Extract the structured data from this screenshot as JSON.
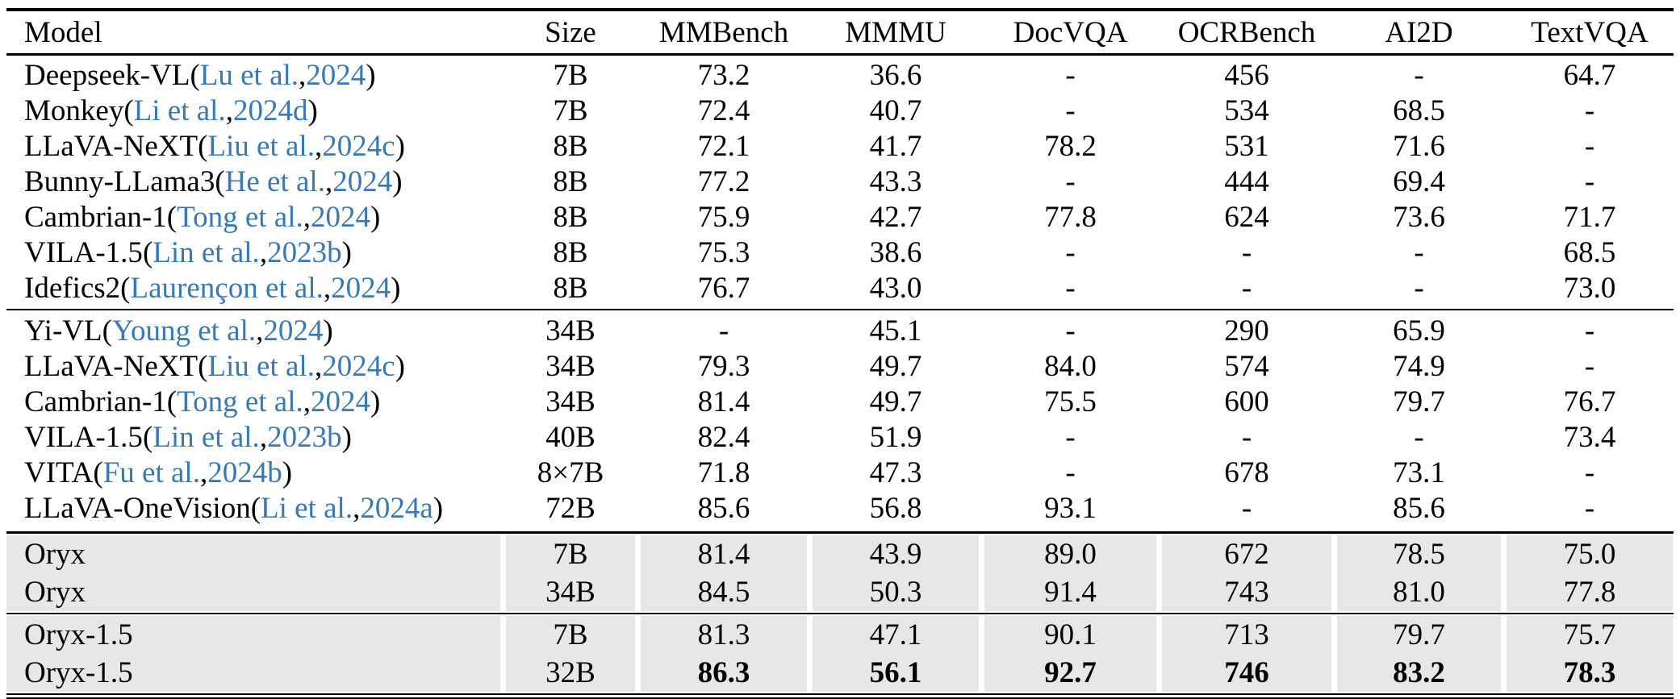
{
  "table": {
    "citation_color": "#3878b4",
    "highlight_color": "#e7e7e7",
    "citation_format": {
      "open": " (",
      "sep": ", ",
      "close": ")"
    },
    "columns": [
      "Model",
      "Size",
      "MMBench",
      "MMMU",
      "DocVQA",
      "OCRBench",
      "AI2D",
      "TextVQA"
    ],
    "groups": [
      {
        "shaded": false,
        "rows": [
          {
            "model": "Deepseek-VL",
            "cite_author": "Lu et al.",
            "cite_year": "2024",
            "size": "7B",
            "values": [
              "73.2",
              "36.6",
              "-",
              "456",
              "-",
              "64.7"
            ],
            "bold_values": false
          },
          {
            "model": "Monkey",
            "cite_author": "Li et al.",
            "cite_year": "2024d",
            "size": "7B",
            "values": [
              "72.4",
              "40.7",
              "-",
              "534",
              "68.5",
              "-"
            ],
            "bold_values": false
          },
          {
            "model": "LLaVA-NeXT",
            "cite_author": "Liu et al.",
            "cite_year": "2024c",
            "size": "8B",
            "values": [
              "72.1",
              "41.7",
              "78.2",
              "531",
              "71.6",
              "-"
            ],
            "bold_values": false
          },
          {
            "model": "Bunny-LLama3",
            "cite_author": "He et al.",
            "cite_year": "2024",
            "size": "8B",
            "values": [
              "77.2",
              "43.3",
              "-",
              "444",
              "69.4",
              "-"
            ],
            "bold_values": false
          },
          {
            "model": "Cambrian-1",
            "cite_author": "Tong et al.",
            "cite_year": "2024",
            "size": "8B",
            "values": [
              "75.9",
              "42.7",
              "77.8",
              "624",
              "73.6",
              "71.7"
            ],
            "bold_values": false
          },
          {
            "model": "VILA-1.5",
            "cite_author": "Lin et al.",
            "cite_year": "2023b",
            "size": "8B",
            "values": [
              "75.3",
              "38.6",
              "-",
              "-",
              "-",
              "68.5"
            ],
            "bold_values": false
          },
          {
            "model": "Idefics2",
            "cite_author": "Laurençon et al.",
            "cite_year": "2024",
            "size": "8B",
            "values": [
              "76.7",
              "43.0",
              "-",
              "-",
              "-",
              "73.0"
            ],
            "bold_values": false
          }
        ]
      },
      {
        "shaded": false,
        "rows": [
          {
            "model": "Yi-VL",
            "cite_author": "Young et al.",
            "cite_year": "2024",
            "size": "34B",
            "values": [
              "-",
              "45.1",
              "-",
              "290",
              "65.9",
              "-"
            ],
            "bold_values": false
          },
          {
            "model": "LLaVA-NeXT",
            "cite_author": "Liu et al.",
            "cite_year": "2024c",
            "size": "34B",
            "values": [
              "79.3",
              "49.7",
              "84.0",
              "574",
              "74.9",
              "-"
            ],
            "bold_values": false
          },
          {
            "model": "Cambrian-1",
            "cite_author": "Tong et al.",
            "cite_year": "2024",
            "size": "34B",
            "values": [
              "81.4",
              "49.7",
              "75.5",
              "600",
              "79.7",
              "76.7"
            ],
            "bold_values": false
          },
          {
            "model": "VILA-1.5",
            "cite_author": "Lin et al.",
            "cite_year": "2023b",
            "size": "40B",
            "values": [
              "82.4",
              "51.9",
              "-",
              "-",
              "-",
              "73.4"
            ],
            "bold_values": false
          },
          {
            "model": "VITA",
            "cite_author": "Fu et al.",
            "cite_year": "2024b",
            "size": "8×7B",
            "values": [
              "71.8",
              "47.3",
              "-",
              "678",
              "73.1",
              "-"
            ],
            "bold_values": false
          },
          {
            "model": "LLaVA-OneVision",
            "cite_author": "Li et al.",
            "cite_year": "2024a",
            "size": "72B",
            "values": [
              "85.6",
              "56.8",
              "93.1",
              "-",
              "85.6",
              "-"
            ],
            "bold_values": false
          }
        ]
      },
      {
        "shaded": true,
        "rows": [
          {
            "model": "Oryx",
            "cite_author": "",
            "cite_year": "",
            "size": "7B",
            "values": [
              "81.4",
              "43.9",
              "89.0",
              "672",
              "78.5",
              "75.0"
            ],
            "bold_values": false
          },
          {
            "model": "Oryx",
            "cite_author": "",
            "cite_year": "",
            "size": "34B",
            "values": [
              "84.5",
              "50.3",
              "91.4",
              "743",
              "81.0",
              "77.8"
            ],
            "bold_values": false
          }
        ]
      },
      {
        "shaded": true,
        "rows": [
          {
            "model": "Oryx-1.5",
            "cite_author": "",
            "cite_year": "",
            "size": "7B",
            "values": [
              "81.3",
              "47.1",
              "90.1",
              "713",
              "79.7",
              "75.7"
            ],
            "bold_values": false
          },
          {
            "model": "Oryx-1.5",
            "cite_author": "",
            "cite_year": "",
            "size": "32B",
            "values": [
              "86.3",
              "56.1",
              "92.7",
              "746",
              "83.2",
              "78.3"
            ],
            "bold_values": true
          }
        ]
      }
    ]
  }
}
